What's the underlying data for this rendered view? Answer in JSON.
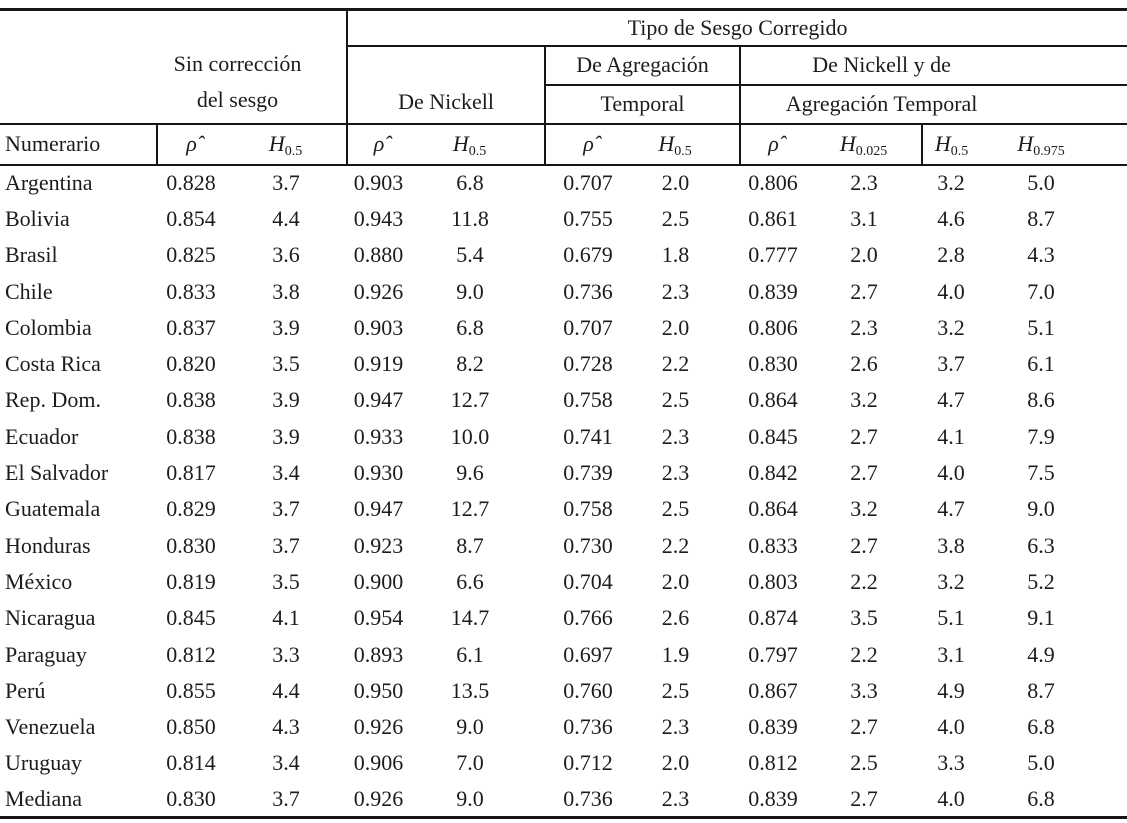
{
  "table": {
    "title_group": "Tipo de Sesgo Corregido",
    "row_header": "Numerario",
    "groups": {
      "sin_correccion": {
        "line1": "Sin corrección",
        "line2": "del sesgo"
      },
      "nickell": {
        "line1": "De Nickell"
      },
      "agregacion": {
        "line1": "De Agregación",
        "line2": "Temporal"
      },
      "nickell_agregacion": {
        "line1": "De Nickell y de",
        "line2": "Agregación Temporal"
      }
    },
    "stat_columns": [
      {
        "var": "ρ̂",
        "sub": ""
      },
      {
        "var": "H",
        "sub": "0.5"
      },
      {
        "var": "ρ̂",
        "sub": ""
      },
      {
        "var": "H",
        "sub": "0.5"
      },
      {
        "var": "ρ̂",
        "sub": ""
      },
      {
        "var": "H",
        "sub": "0.5"
      },
      {
        "var": "ρ̂",
        "sub": ""
      },
      {
        "var": "H",
        "sub": "0.025"
      },
      {
        "var": "H",
        "sub": "0.5"
      },
      {
        "var": "H",
        "sub": "0.975"
      }
    ],
    "rows": [
      {
        "name": "Argentina",
        "values": [
          "0.828",
          "3.7",
          "0.903",
          "6.8",
          "0.707",
          "2.0",
          "0.806",
          "2.3",
          "3.2",
          "5.0"
        ]
      },
      {
        "name": "Bolivia",
        "values": [
          "0.854",
          "4.4",
          "0.943",
          "11.8",
          "0.755",
          "2.5",
          "0.861",
          "3.1",
          "4.6",
          "8.7"
        ]
      },
      {
        "name": "Brasil",
        "values": [
          "0.825",
          "3.6",
          "0.880",
          "5.4",
          "0.679",
          "1.8",
          "0.777",
          "2.0",
          "2.8",
          "4.3"
        ]
      },
      {
        "name": "Chile",
        "values": [
          "0.833",
          "3.8",
          "0.926",
          "9.0",
          "0.736",
          "2.3",
          "0.839",
          "2.7",
          "4.0",
          "7.0"
        ]
      },
      {
        "name": "Colombia",
        "values": [
          "0.837",
          "3.9",
          "0.903",
          "6.8",
          "0.707",
          "2.0",
          "0.806",
          "2.3",
          "3.2",
          "5.1"
        ]
      },
      {
        "name": "Costa Rica",
        "values": [
          "0.820",
          "3.5",
          "0.919",
          "8.2",
          "0.728",
          "2.2",
          "0.830",
          "2.6",
          "3.7",
          "6.1"
        ]
      },
      {
        "name": "Rep. Dom.",
        "values": [
          "0.838",
          "3.9",
          "0.947",
          "12.7",
          "0.758",
          "2.5",
          "0.864",
          "3.2",
          "4.7",
          "8.6"
        ]
      },
      {
        "name": "Ecuador",
        "values": [
          "0.838",
          "3.9",
          "0.933",
          "10.0",
          "0.741",
          "2.3",
          "0.845",
          "2.7",
          "4.1",
          "7.9"
        ]
      },
      {
        "name": "El Salvador",
        "values": [
          "0.817",
          "3.4",
          "0.930",
          "9.6",
          "0.739",
          "2.3",
          "0.842",
          "2.7",
          "4.0",
          "7.5"
        ]
      },
      {
        "name": "Guatemala",
        "values": [
          "0.829",
          "3.7",
          "0.947",
          "12.7",
          "0.758",
          "2.5",
          "0.864",
          "3.2",
          "4.7",
          "9.0"
        ]
      },
      {
        "name": "Honduras",
        "values": [
          "0.830",
          "3.7",
          "0.923",
          "8.7",
          "0.730",
          "2.2",
          "0.833",
          "2.7",
          "3.8",
          "6.3"
        ]
      },
      {
        "name": "México",
        "values": [
          "0.819",
          "3.5",
          "0.900",
          "6.6",
          "0.704",
          "2.0",
          "0.803",
          "2.2",
          "3.2",
          "5.2"
        ]
      },
      {
        "name": "Nicaragua",
        "values": [
          "0.845",
          "4.1",
          "0.954",
          "14.7",
          "0.766",
          "2.6",
          "0.874",
          "3.5",
          "5.1",
          "9.1"
        ]
      },
      {
        "name": "Paraguay",
        "values": [
          "0.812",
          "3.3",
          "0.893",
          "6.1",
          "0.697",
          "1.9",
          "0.797",
          "2.2",
          "3.1",
          "4.9"
        ]
      },
      {
        "name": "Perú",
        "values": [
          "0.855",
          "4.4",
          "0.950",
          "13.5",
          "0.760",
          "2.5",
          "0.867",
          "3.3",
          "4.9",
          "8.7"
        ]
      },
      {
        "name": "Venezuela",
        "values": [
          "0.850",
          "4.3",
          "0.926",
          "9.0",
          "0.736",
          "2.3",
          "0.839",
          "2.7",
          "4.0",
          "6.8"
        ]
      },
      {
        "name": "Uruguay",
        "values": [
          "0.814",
          "3.4",
          "0.906",
          "7.0",
          "0.712",
          "2.0",
          "0.812",
          "2.5",
          "3.3",
          "5.0"
        ]
      },
      {
        "name": "Mediana",
        "values": [
          "0.830",
          "3.7",
          "0.926",
          "9.0",
          "0.736",
          "2.3",
          "0.839",
          "2.7",
          "4.0",
          "6.8"
        ]
      }
    ]
  }
}
